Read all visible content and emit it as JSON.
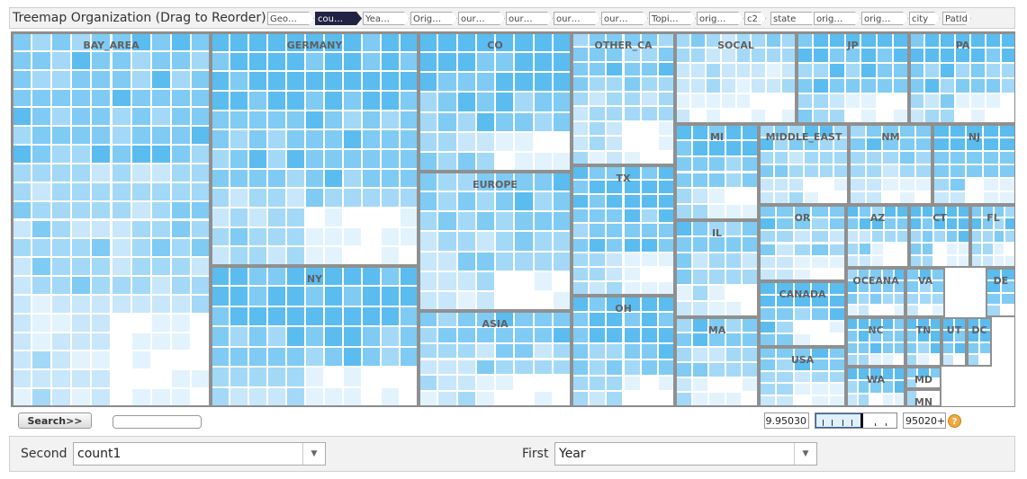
{
  "header": {
    "title": "Treemap Organization (Drag to Reorder)",
    "chips": [
      "Geo…",
      "cou…",
      "Yea…",
      "Orig…",
      "our…",
      "our…",
      "our…",
      "our…",
      "Topi…",
      "orig…",
      "c2",
      "state",
      "orig…",
      "orig…",
      "city",
      "PatId"
    ]
  },
  "treemap": {
    "colors": [
      "#5bbcef",
      "#7fcbf3",
      "#a3d9f7",
      "#c8e7fa",
      "#e3f3fd",
      "#ffffff"
    ],
    "regions": [
      "BAY_AREA",
      "GERMANY",
      "NY",
      "CO",
      "EUROPE",
      "ASIA",
      "OTHER_CA",
      "TX",
      "OH",
      "SOCAL",
      "JP",
      "PA",
      "MI",
      "MIDDLE_EAST",
      "NM",
      "NJ",
      "IL",
      "MA",
      "OR",
      "AZ",
      "CT",
      "FL",
      "CANADA",
      "OCEANA",
      "VA",
      "DE",
      "USA",
      "NC",
      "TN",
      "UT",
      "DC",
      "WA",
      "MD",
      "MN"
    ]
  },
  "controls": {
    "search_label": "Search>>",
    "range_min": "9.95030",
    "range_max": "95020+",
    "help_glyph": "?"
  },
  "bottom": {
    "second_label": "Second",
    "second_value": "count1",
    "first_label": "First",
    "first_value": "Year",
    "dropdown_glyph": "▼"
  }
}
